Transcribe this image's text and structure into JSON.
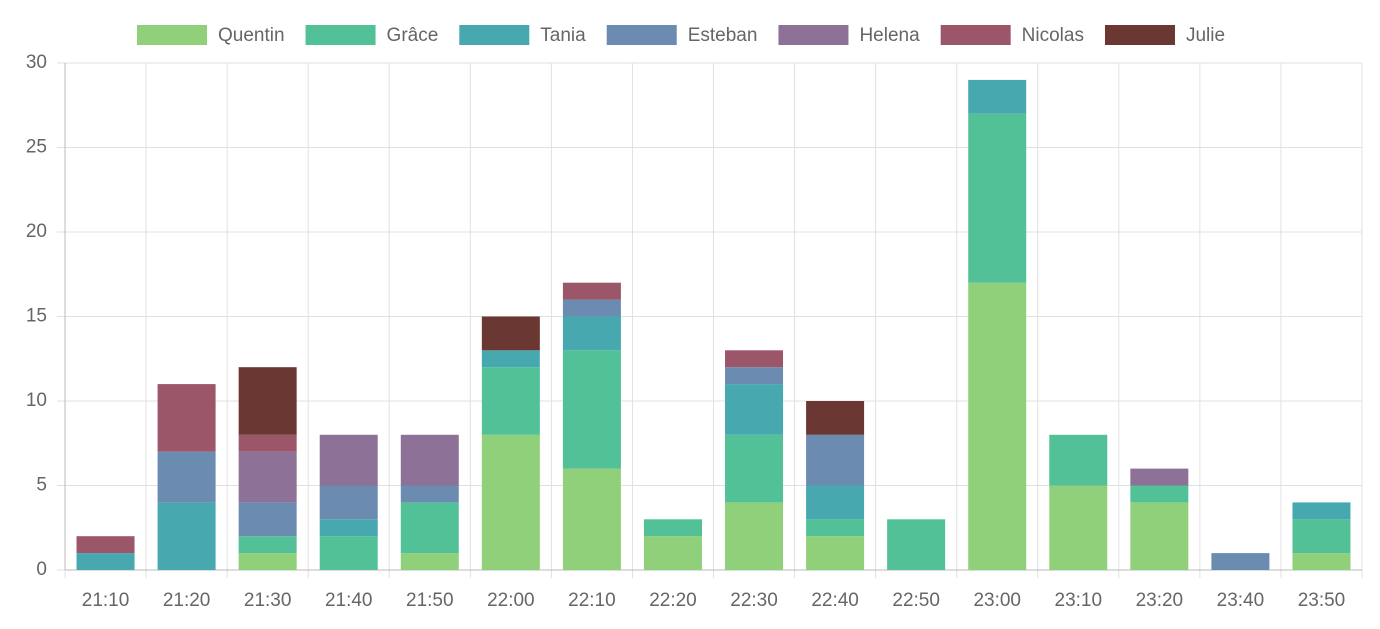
{
  "chart_data": {
    "type": "bar",
    "stacked": true,
    "grid": true,
    "categories": [
      "21:10",
      "21:20",
      "21:30",
      "21:40",
      "21:50",
      "22:00",
      "22:10",
      "22:20",
      "22:30",
      "22:40",
      "22:50",
      "23:00",
      "23:10",
      "23:20",
      "23:40",
      "23:50"
    ],
    "series": [
      {
        "name": "Quentin",
        "color": "#91d07a",
        "values": [
          0,
          0,
          1,
          0,
          1,
          8,
          6,
          2,
          4,
          2,
          0,
          17,
          5,
          4,
          0,
          1
        ]
      },
      {
        "name": "Grâce",
        "color": "#52c197",
        "values": [
          0,
          0,
          1,
          2,
          3,
          4,
          7,
          1,
          4,
          1,
          3,
          10,
          3,
          1,
          0,
          2
        ]
      },
      {
        "name": "Tania",
        "color": "#47a8b0",
        "values": [
          1,
          4,
          0,
          1,
          0,
          1,
          2,
          0,
          3,
          2,
          0,
          2,
          0,
          0,
          0,
          1
        ]
      },
      {
        "name": "Esteban",
        "color": "#6b8cb0",
        "values": [
          0,
          3,
          2,
          2,
          1,
          0,
          1,
          0,
          1,
          3,
          0,
          0,
          0,
          0,
          1,
          0
        ]
      },
      {
        "name": "Helena",
        "color": "#8e7196",
        "values": [
          0,
          0,
          3,
          3,
          3,
          0,
          0,
          0,
          0,
          0,
          0,
          0,
          0,
          1,
          0,
          0
        ]
      },
      {
        "name": "Nicolas",
        "color": "#9c5669",
        "values": [
          1,
          4,
          1,
          0,
          0,
          0,
          1,
          0,
          1,
          0,
          0,
          0,
          0,
          0,
          0,
          0
        ]
      },
      {
        "name": "Julie",
        "color": "#6b3732",
        "values": [
          0,
          0,
          4,
          0,
          0,
          2,
          0,
          0,
          0,
          2,
          0,
          0,
          0,
          0,
          0,
          0
        ]
      }
    ],
    "ylim": [
      0,
      30
    ],
    "yticks": [
      0,
      5,
      10,
      15,
      20,
      25,
      30
    ]
  }
}
